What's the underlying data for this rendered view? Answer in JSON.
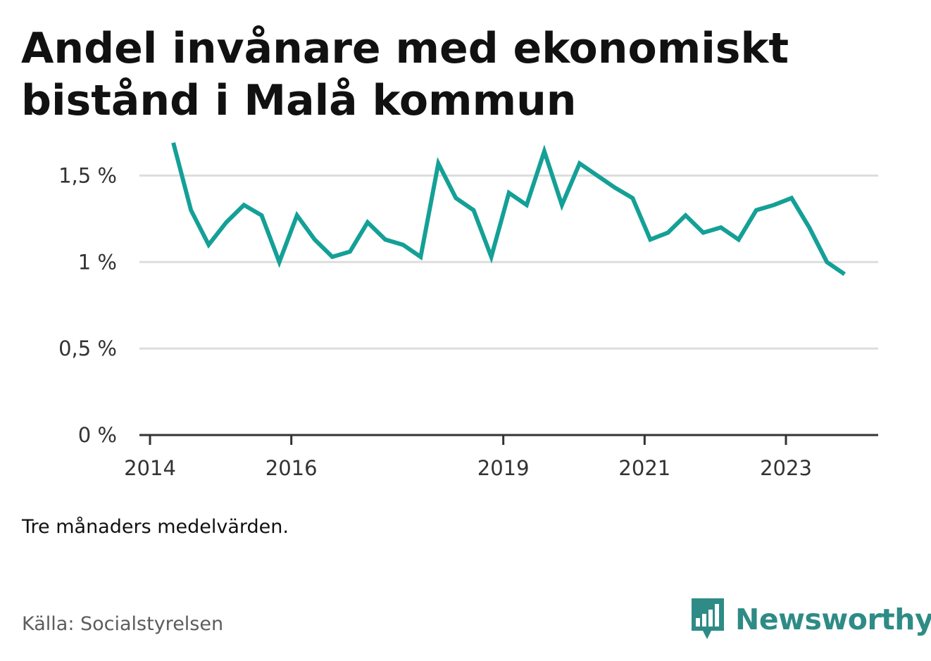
{
  "title": {
    "line1": "Andel invånare med ekonomiskt",
    "line2": "bistånd i Malå kommun"
  },
  "note": "Tre månaders medelvärden.",
  "source": "Källa: Socialstyrelsen",
  "brand": {
    "name": "Newsworthy",
    "logo_icon": "bar-chart-speech-bubble-icon",
    "color": "#2e8b86"
  },
  "colors": {
    "line": "#14a096",
    "grid": "#dddddd",
    "axis": "#333333"
  },
  "chart_data": {
    "type": "line",
    "title": "Andel invånare med ekonomiskt bistånd i Malå kommun",
    "xlabel": "",
    "ylabel": "",
    "ylim": [
      0,
      1.75
    ],
    "grid": true,
    "legend": "none",
    "yticks": [
      {
        "value": 0,
        "label": "0 %"
      },
      {
        "value": 0.5,
        "label": "0,5 %"
      },
      {
        "value": 1,
        "label": "1 %"
      },
      {
        "value": 1.5,
        "label": "1,5 %"
      }
    ],
    "xticks": [
      {
        "value": 2014.0,
        "label": "2014"
      },
      {
        "value": 2016.0,
        "label": "2016"
      },
      {
        "value": 2019.0,
        "label": "2019"
      },
      {
        "value": 2021.0,
        "label": "2021"
      },
      {
        "value": 2023.0,
        "label": "2023"
      }
    ],
    "xlim": [
      2013.875,
      2024.33
    ],
    "series": [
      {
        "x": [
          2014.33,
          2014.58,
          2014.83,
          2015.08,
          2015.33,
          2015.58,
          2015.83,
          2016.08,
          2016.33,
          2016.58,
          2016.83,
          2017.08,
          2017.33,
          2017.58,
          2017.83,
          2018.08,
          2018.33,
          2018.58,
          2018.83,
          2019.08,
          2019.33,
          2019.58,
          2019.83,
          2020.08,
          2020.33,
          2020.58,
          2020.83,
          2021.08,
          2021.33,
          2021.58,
          2021.83,
          2022.08,
          2022.33,
          2022.58,
          2022.83,
          2023.08,
          2023.33,
          2023.58,
          2023.83
        ],
        "values": [
          1.69,
          1.3,
          1.1,
          1.23,
          1.33,
          1.27,
          1.0,
          1.27,
          1.13,
          1.03,
          1.06,
          1.23,
          1.13,
          1.1,
          1.03,
          1.57,
          1.37,
          1.3,
          1.03,
          1.4,
          1.33,
          1.64,
          1.33,
          1.57,
          1.5,
          1.43,
          1.37,
          1.13,
          1.17,
          1.27,
          1.17,
          1.2,
          1.13,
          1.3,
          1.33,
          1.37,
          1.2,
          1.0,
          0.93
        ]
      }
    ]
  }
}
